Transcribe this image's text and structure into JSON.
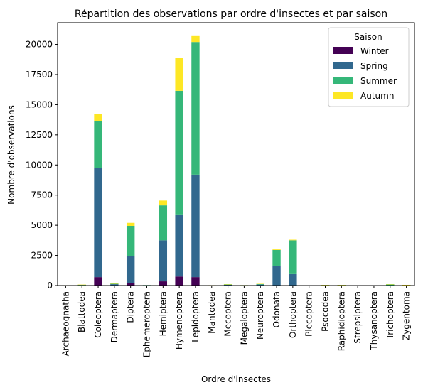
{
  "chart_data": {
    "type": "bar",
    "stacked": true,
    "title": "Répartition des observations par ordre d'insectes et par saison",
    "xlabel": "Ordre d'insectes",
    "ylabel": "Nombre d'observations",
    "ylim": [
      0,
      21800
    ],
    "yticks": [
      0,
      2500,
      5000,
      7500,
      10000,
      12500,
      15000,
      17500,
      20000
    ],
    "grid": false,
    "legend": {
      "title": "Saison",
      "placement": "top-right"
    },
    "categories": [
      "Archaeognatha",
      "Blattodea",
      "Coleoptera",
      "Dermaptera",
      "Diptera",
      "Ephemeroptera",
      "Hemiptera",
      "Hymenoptera",
      "Lepidoptera",
      "Mantodea",
      "Mecoptera",
      "Megaloptera",
      "Neuroptera",
      "Odonata",
      "Orthoptera",
      "Plecoptera",
      "Psocodea",
      "Raphidioptera",
      "Strepsiptera",
      "Thysanoptera",
      "Trichoptera",
      "Zygentoma"
    ],
    "series": [
      {
        "name": "Winter",
        "color": "#440154",
        "values": [
          5,
          20,
          700,
          30,
          200,
          5,
          350,
          750,
          700,
          3,
          10,
          3,
          20,
          0,
          0,
          2,
          15,
          3,
          0,
          0,
          5,
          20
        ]
      },
      {
        "name": "Spring",
        "color": "#31688e",
        "values": [
          10,
          30,
          9050,
          80,
          2250,
          20,
          3400,
          5150,
          8500,
          5,
          50,
          15,
          60,
          1650,
          950,
          5,
          15,
          30,
          0,
          0,
          20,
          20
        ]
      },
      {
        "name": "Summer",
        "color": "#35b779",
        "values": [
          10,
          20,
          3900,
          50,
          2500,
          15,
          2900,
          10250,
          11000,
          20,
          40,
          15,
          50,
          1300,
          2800,
          3,
          15,
          15,
          0,
          0,
          80,
          15
        ]
      },
      {
        "name": "Autumn",
        "color": "#fde725",
        "values": [
          5,
          10,
          600,
          10,
          250,
          0,
          400,
          2750,
          550,
          5,
          10,
          2,
          20,
          50,
          50,
          0,
          5,
          2,
          0,
          0,
          5,
          5
        ]
      }
    ]
  }
}
